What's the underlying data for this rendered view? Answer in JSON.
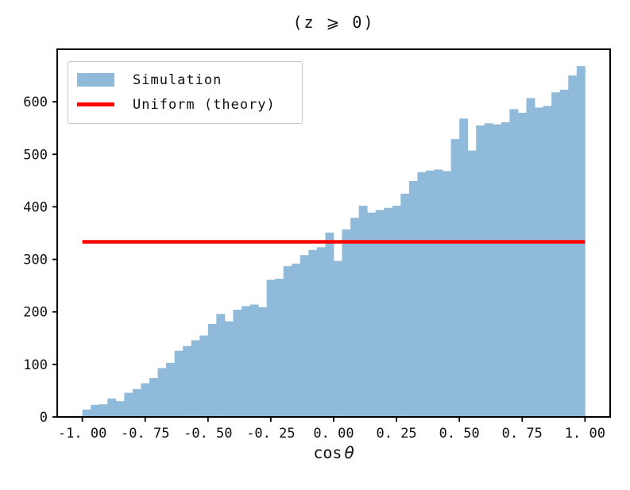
{
  "title": "(z ⩾ 0)",
  "xlabel": {
    "prefix": "cos",
    "symbol": "θ"
  },
  "legend": [
    {
      "label": "Simulation",
      "swatch": "patch",
      "color": "#8FBAD9"
    },
    {
      "label": "Uniform (theory)",
      "swatch": "line",
      "color": "#FF0000"
    }
  ],
  "axes": {
    "x_ticks": [
      {
        "v": -1.0,
        "label": "-1. 00"
      },
      {
        "v": -0.75,
        "label": "-0. 75"
      },
      {
        "v": -0.5,
        "label": "-0. 50"
      },
      {
        "v": -0.25,
        "label": "-0. 25"
      },
      {
        "v": 0.0,
        "label": "0. 00"
      },
      {
        "v": 0.25,
        "label": "0. 25"
      },
      {
        "v": 0.5,
        "label": "0. 50"
      },
      {
        "v": 0.75,
        "label": "0. 75"
      },
      {
        "v": 1.0,
        "label": "1. 00"
      }
    ],
    "y_ticks": [
      {
        "v": 0,
        "label": "0"
      },
      {
        "v": 100,
        "label": "100"
      },
      {
        "v": 200,
        "label": "200"
      },
      {
        "v": 300,
        "label": "300"
      },
      {
        "v": 400,
        "label": "400"
      },
      {
        "v": 500,
        "label": "500"
      },
      {
        "v": 600,
        "label": "600"
      }
    ]
  },
  "chart_data": {
    "type": "bar",
    "subtype": "histogram",
    "title": "(z ≥ 0)",
    "xlabel": "cos θ",
    "ylabel": "",
    "xlim": [
      -1.1,
      1.1
    ],
    "ylim": [
      0,
      700
    ],
    "grid": false,
    "legend_position": "upper left",
    "bins": {
      "start": -1.0,
      "end": 1.0,
      "count": 60,
      "bin_width": 0.0333
    },
    "series": [
      {
        "name": "Simulation",
        "kind": "histogram",
        "color": "#8FBAD9",
        "bin_start": -1.0,
        "bin_width": 0.033333,
        "values": [
          14,
          23,
          24,
          35,
          30,
          46,
          53,
          64,
          74,
          93,
          103,
          126,
          135,
          146,
          155,
          177,
          196,
          182,
          204,
          211,
          214,
          209,
          261,
          263,
          287,
          292,
          308,
          318,
          323,
          351,
          297,
          357,
          379,
          402,
          389,
          394,
          398,
          402,
          425,
          449,
          466,
          469,
          471,
          468,
          529,
          568,
          507,
          555,
          559,
          557,
          561,
          586,
          579,
          607,
          589,
          592,
          618,
          623,
          650,
          668
        ]
      },
      {
        "name": "Uniform (theory)",
        "kind": "hline",
        "color": "#FF0000",
        "y": 333.3,
        "x_range": [
          -1.0,
          1.0
        ]
      }
    ]
  }
}
